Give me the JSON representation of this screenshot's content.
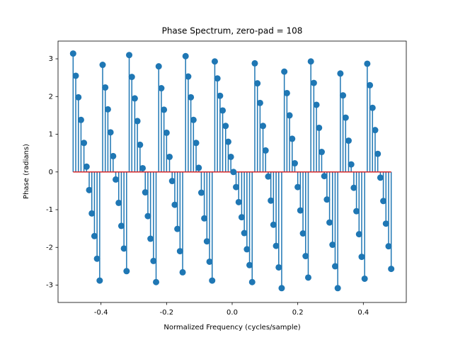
{
  "chart_data": {
    "type": "stem",
    "title": "Phase Spectrum, zero-pad = 108",
    "xlabel": "Normalized Frequency (cycles/sample)",
    "ylabel": "Phase (radians)",
    "color": "#1f77b4",
    "baseline_color": "#d62728",
    "xlim": [
      -0.531,
      0.531
    ],
    "ylim": [
      -3.46,
      3.47
    ],
    "xticks": [
      -0.4,
      -0.2,
      {
        "value": 0,
        "label": "0.0"
      },
      0.2,
      0.4
    ],
    "yticks": [
      -3,
      -2,
      -1,
      0,
      1,
      2,
      3
    ],
    "x": [
      -0.485,
      -0.477,
      -0.469,
      -0.461,
      -0.452,
      -0.444,
      -0.436,
      -0.428,
      -0.42,
      -0.412,
      -0.404,
      -0.395,
      -0.387,
      -0.379,
      -0.371,
      -0.363,
      -0.355,
      -0.346,
      -0.338,
      -0.33,
      -0.322,
      -0.314,
      -0.306,
      -0.297,
      -0.289,
      -0.281,
      -0.273,
      -0.265,
      -0.257,
      -0.249,
      -0.24,
      -0.232,
      -0.224,
      -0.216,
      -0.208,
      -0.2,
      -0.191,
      -0.183,
      -0.175,
      -0.167,
      -0.159,
      -0.151,
      -0.142,
      -0.134,
      -0.126,
      -0.118,
      -0.11,
      -0.102,
      -0.094,
      -0.085,
      -0.077,
      -0.069,
      -0.061,
      -0.053,
      -0.045,
      -0.037,
      -0.029,
      -0.02,
      -0.012,
      -0.004,
      0.004,
      0.012,
      0.02,
      0.029,
      0.037,
      0.045,
      0.053,
      0.061,
      0.069,
      0.077,
      0.085,
      0.094,
      0.102,
      0.11,
      0.118,
      0.126,
      0.134,
      0.142,
      0.151,
      0.159,
      0.167,
      0.175,
      0.183,
      0.191,
      0.2,
      0.208,
      0.216,
      0.224,
      0.232,
      0.24,
      0.249,
      0.257,
      0.265,
      0.273,
      0.281,
      0.289,
      0.297,
      0.306,
      0.314,
      0.322,
      0.33,
      0.338,
      0.346,
      0.355,
      0.363,
      0.371,
      0.379,
      0.387,
      0.395,
      0.404,
      0.412,
      0.42,
      0.428,
      0.436,
      0.444,
      0.452,
      0.461,
      0.469,
      0.477,
      0.485
    ],
    "values": [
      3.14,
      2.55,
      1.98,
      1.38,
      0.77,
      0.14,
      -0.48,
      -1.1,
      -1.7,
      -2.3,
      -2.88,
      2.84,
      2.24,
      1.66,
      1.05,
      0.42,
      -0.2,
      -0.82,
      -1.43,
      -2.03,
      -2.63,
      3.1,
      2.52,
      1.95,
      1.35,
      0.72,
      0.1,
      -0.54,
      -1.17,
      -1.77,
      -2.36,
      -2.92,
      2.8,
      2.22,
      1.65,
      1.04,
      0.4,
      -0.24,
      -0.87,
      -1.51,
      -2.1,
      -2.66,
      3.07,
      2.53,
      1.98,
      1.38,
      0.77,
      0.11,
      -0.55,
      -1.23,
      -1.84,
      -2.38,
      -2.88,
      2.93,
      2.48,
      2.02,
      1.63,
      1.22,
      0.8,
      0.4,
      0.0,
      -0.4,
      -0.8,
      -1.2,
      -1.62,
      -2.05,
      -2.47,
      -2.92,
      2.88,
      2.35,
      1.83,
      1.22,
      0.57,
      -0.12,
      -0.76,
      -1.4,
      -1.96,
      -2.53,
      -3.08,
      2.66,
      2.09,
      1.5,
      0.88,
      0.23,
      -0.4,
      -1.02,
      -1.63,
      -2.23,
      -2.8,
      2.93,
      2.36,
      1.78,
      1.17,
      0.53,
      -0.11,
      -0.73,
      -1.34,
      -1.93,
      -2.5,
      -3.08,
      2.61,
      2.03,
      1.44,
      0.83,
      0.2,
      -0.42,
      -1.04,
      -1.65,
      -2.25,
      -2.83,
      2.87,
      2.3,
      1.7,
      1.11,
      0.48,
      -0.15,
      -0.77,
      -1.37,
      -1.97,
      -2.57
    ]
  }
}
